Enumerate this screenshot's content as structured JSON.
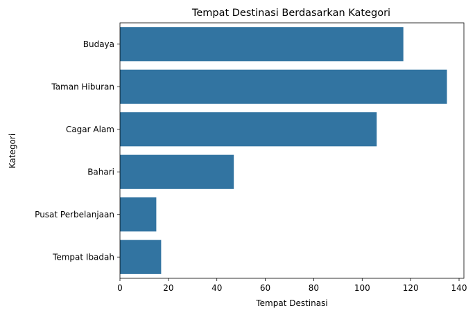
{
  "chart_data": {
    "type": "bar",
    "orientation": "horizontal",
    "title": "Tempat Destinasi Berdasarkan Kategori",
    "xlabel": "Tempat Destinasi",
    "ylabel": "Kategori",
    "categories": [
      "Budaya",
      "Taman Hiburan",
      "Cagar Alam",
      "Bahari",
      "Pusat Perbelanjaan",
      "Tempat Ibadah"
    ],
    "values": [
      117,
      135,
      106,
      47,
      15,
      17
    ],
    "xlim": [
      0,
      142
    ],
    "xticks": [
      0,
      20,
      40,
      60,
      80,
      100,
      120,
      140
    ],
    "xtick_labels": [
      "0",
      "20",
      "40",
      "60",
      "80",
      "100",
      "120",
      "140"
    ],
    "grid": false,
    "legend": "none",
    "bar_color": "#3274a1"
  }
}
